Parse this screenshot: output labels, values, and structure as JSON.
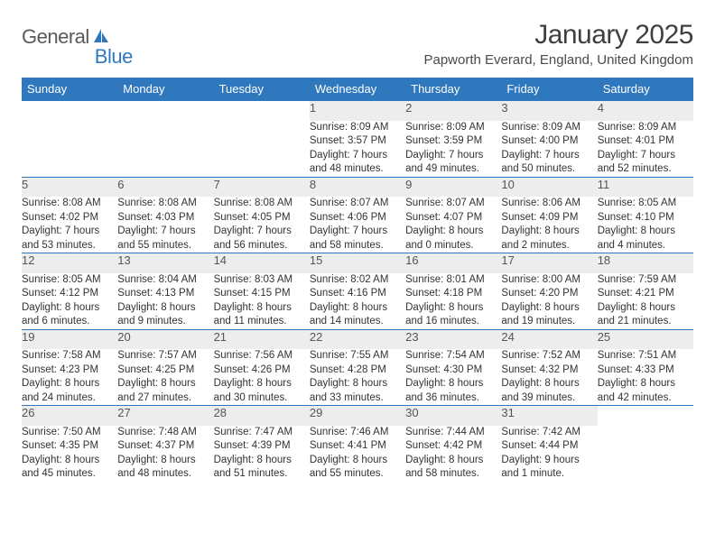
{
  "logo": {
    "word1": "General",
    "word2": "Blue",
    "sail_color": "#2f78bd",
    "text1_color": "#5a5a5a"
  },
  "header": {
    "month_title": "January 2025",
    "location": "Papworth Everard, England, United Kingdom"
  },
  "colors": {
    "header_bg": "#2f78bd",
    "header_text": "#ffffff",
    "daynum_bg": "#ededed",
    "rule": "#2f78bd"
  },
  "weekdays": [
    "Sunday",
    "Monday",
    "Tuesday",
    "Wednesday",
    "Thursday",
    "Friday",
    "Saturday"
  ],
  "weeks": [
    [
      null,
      null,
      null,
      {
        "n": "1",
        "sr": "8:09 AM",
        "ss": "3:57 PM",
        "dl": "7 hours and 48 minutes."
      },
      {
        "n": "2",
        "sr": "8:09 AM",
        "ss": "3:59 PM",
        "dl": "7 hours and 49 minutes."
      },
      {
        "n": "3",
        "sr": "8:09 AM",
        "ss": "4:00 PM",
        "dl": "7 hours and 50 minutes."
      },
      {
        "n": "4",
        "sr": "8:09 AM",
        "ss": "4:01 PM",
        "dl": "7 hours and 52 minutes."
      }
    ],
    [
      {
        "n": "5",
        "sr": "8:08 AM",
        "ss": "4:02 PM",
        "dl": "7 hours and 53 minutes."
      },
      {
        "n": "6",
        "sr": "8:08 AM",
        "ss": "4:03 PM",
        "dl": "7 hours and 55 minutes."
      },
      {
        "n": "7",
        "sr": "8:08 AM",
        "ss": "4:05 PM",
        "dl": "7 hours and 56 minutes."
      },
      {
        "n": "8",
        "sr": "8:07 AM",
        "ss": "4:06 PM",
        "dl": "7 hours and 58 minutes."
      },
      {
        "n": "9",
        "sr": "8:07 AM",
        "ss": "4:07 PM",
        "dl": "8 hours and 0 minutes."
      },
      {
        "n": "10",
        "sr": "8:06 AM",
        "ss": "4:09 PM",
        "dl": "8 hours and 2 minutes."
      },
      {
        "n": "11",
        "sr": "8:05 AM",
        "ss": "4:10 PM",
        "dl": "8 hours and 4 minutes."
      }
    ],
    [
      {
        "n": "12",
        "sr": "8:05 AM",
        "ss": "4:12 PM",
        "dl": "8 hours and 6 minutes."
      },
      {
        "n": "13",
        "sr": "8:04 AM",
        "ss": "4:13 PM",
        "dl": "8 hours and 9 minutes."
      },
      {
        "n": "14",
        "sr": "8:03 AM",
        "ss": "4:15 PM",
        "dl": "8 hours and 11 minutes."
      },
      {
        "n": "15",
        "sr": "8:02 AM",
        "ss": "4:16 PM",
        "dl": "8 hours and 14 minutes."
      },
      {
        "n": "16",
        "sr": "8:01 AM",
        "ss": "4:18 PM",
        "dl": "8 hours and 16 minutes."
      },
      {
        "n": "17",
        "sr": "8:00 AM",
        "ss": "4:20 PM",
        "dl": "8 hours and 19 minutes."
      },
      {
        "n": "18",
        "sr": "7:59 AM",
        "ss": "4:21 PM",
        "dl": "8 hours and 21 minutes."
      }
    ],
    [
      {
        "n": "19",
        "sr": "7:58 AM",
        "ss": "4:23 PM",
        "dl": "8 hours and 24 minutes."
      },
      {
        "n": "20",
        "sr": "7:57 AM",
        "ss": "4:25 PM",
        "dl": "8 hours and 27 minutes."
      },
      {
        "n": "21",
        "sr": "7:56 AM",
        "ss": "4:26 PM",
        "dl": "8 hours and 30 minutes."
      },
      {
        "n": "22",
        "sr": "7:55 AM",
        "ss": "4:28 PM",
        "dl": "8 hours and 33 minutes."
      },
      {
        "n": "23",
        "sr": "7:54 AM",
        "ss": "4:30 PM",
        "dl": "8 hours and 36 minutes."
      },
      {
        "n": "24",
        "sr": "7:52 AM",
        "ss": "4:32 PM",
        "dl": "8 hours and 39 minutes."
      },
      {
        "n": "25",
        "sr": "7:51 AM",
        "ss": "4:33 PM",
        "dl": "8 hours and 42 minutes."
      }
    ],
    [
      {
        "n": "26",
        "sr": "7:50 AM",
        "ss": "4:35 PM",
        "dl": "8 hours and 45 minutes."
      },
      {
        "n": "27",
        "sr": "7:48 AM",
        "ss": "4:37 PM",
        "dl": "8 hours and 48 minutes."
      },
      {
        "n": "28",
        "sr": "7:47 AM",
        "ss": "4:39 PM",
        "dl": "8 hours and 51 minutes."
      },
      {
        "n": "29",
        "sr": "7:46 AM",
        "ss": "4:41 PM",
        "dl": "8 hours and 55 minutes."
      },
      {
        "n": "30",
        "sr": "7:44 AM",
        "ss": "4:42 PM",
        "dl": "8 hours and 58 minutes."
      },
      {
        "n": "31",
        "sr": "7:42 AM",
        "ss": "4:44 PM",
        "dl": "9 hours and 1 minute."
      },
      null
    ]
  ],
  "labels": {
    "sunrise": "Sunrise:",
    "sunset": "Sunset:",
    "daylight": "Daylight:"
  }
}
